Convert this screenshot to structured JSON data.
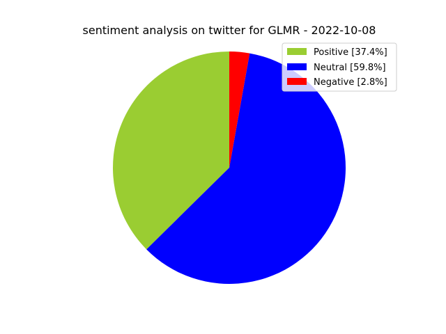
{
  "chart_data": {
    "type": "pie",
    "title": "sentiment analysis on twitter for GLMR - 2022-10-08",
    "start_angle_deg": 90,
    "direction": "counterclockwise",
    "legend_position": "upper-right",
    "slices": [
      {
        "label": "Positive",
        "legend_label": "Positive [37.4%]",
        "value": 37.4,
        "color": "#9acd32"
      },
      {
        "label": "Neutral",
        "legend_label": "Neutral [59.8%]",
        "value": 59.8,
        "color": "#0000ff"
      },
      {
        "label": "Negative",
        "legend_label": "Negative [2.8%]",
        "value": 2.8,
        "color": "#ff0000"
      }
    ]
  }
}
